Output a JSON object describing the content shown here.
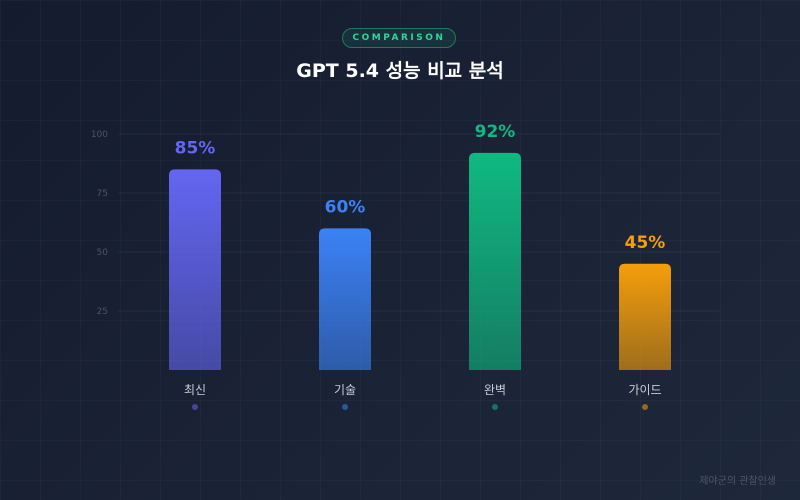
{
  "badge": "COMPARISON",
  "title": "GPT 5.4 성능 비교 분석",
  "credit": "제야군의 관찰인생",
  "chart_data": {
    "type": "bar",
    "categories": [
      "최신",
      "기술",
      "완벽",
      "가이드"
    ],
    "values": [
      85,
      60,
      92,
      45
    ],
    "value_labels": [
      "85%",
      "60%",
      "92%",
      "45%"
    ],
    "colors": [
      "#6366f1",
      "#3b82f6",
      "#10b981",
      "#f59e0b"
    ],
    "yticks": [
      25,
      50,
      75,
      100
    ],
    "ylim": [
      0,
      100
    ],
    "grid": true
  }
}
